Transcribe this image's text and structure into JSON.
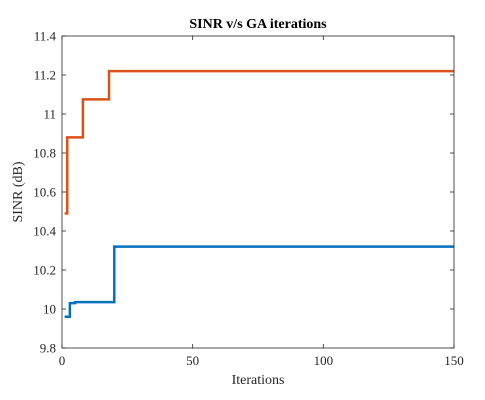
{
  "chart_data": {
    "type": "line",
    "title": "SINR v/s GA iterations",
    "xlabel": "Iterations",
    "ylabel": "SINR (dB)",
    "xlim": [
      0,
      150
    ],
    "ylim": [
      9.8,
      11.4
    ],
    "xticks": [
      0,
      50,
      100,
      150
    ],
    "yticks": [
      9.8,
      10,
      10.2,
      10.4,
      10.6,
      10.8,
      11,
      11.2,
      11.4
    ],
    "grid": false,
    "series": [
      {
        "color": "#D95319",
        "x": [
          1,
          2,
          2,
          7,
          7,
          8,
          8,
          17,
          17,
          18,
          18,
          150
        ],
        "y": [
          10.49,
          10.49,
          10.88,
          10.88,
          10.88,
          10.88,
          11.075,
          11.075,
          11.075,
          11.075,
          11.22,
          11.22
        ]
      },
      {
        "color": "#0072BD",
        "x": [
          1,
          2,
          3,
          3,
          5,
          5,
          19,
          19,
          20,
          20,
          150
        ],
        "y": [
          9.96,
          9.96,
          9.96,
          10.03,
          10.03,
          10.035,
          10.035,
          10.035,
          10.035,
          10.32,
          10.32
        ]
      }
    ]
  }
}
